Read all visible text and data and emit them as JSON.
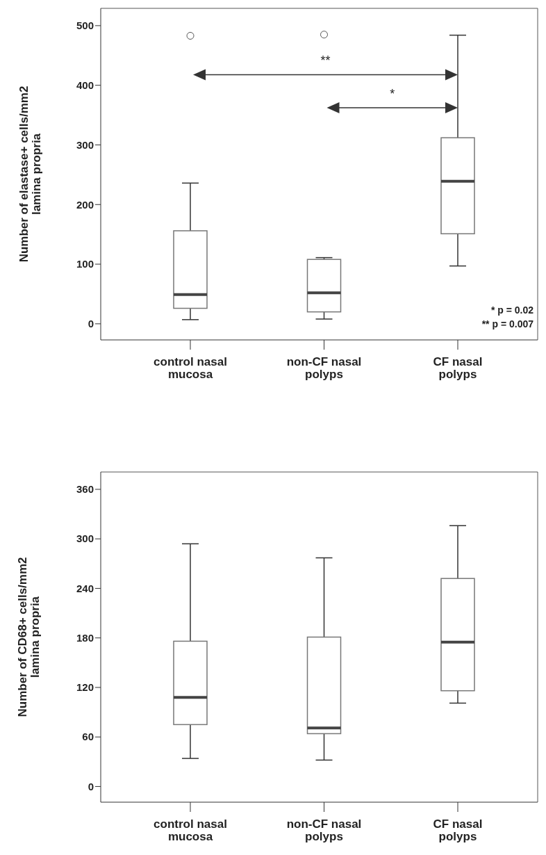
{
  "chart_data": [
    {
      "type": "box",
      "ylabel": "Number of elastase+ cells/mm2\nlamina propria",
      "categories": [
        "control nasal\nmucosa",
        "non-CF nasal\npolyps",
        "CF nasal\npolyps"
      ],
      "ylim": [
        -27,
        529
      ],
      "yticks": [
        0,
        100,
        200,
        300,
        400,
        500
      ],
      "boxes": [
        {
          "low": 7,
          "q1": 26,
          "median": 49,
          "q3": 156,
          "high": 236,
          "outliers": [
            483
          ]
        },
        {
          "low": 8,
          "q1": 20,
          "median": 52,
          "q3": 108,
          "high": 111,
          "outliers": [
            485
          ]
        },
        {
          "low": 97,
          "q1": 151,
          "median": 239,
          "q3": 312,
          "high": 484
        }
      ],
      "annotations": [
        "**",
        "*",
        "*  p = 0.02",
        "**  p = 0.007"
      ],
      "grid": false
    },
    {
      "type": "box",
      "ylabel": "Number of CD68+ cells/mm2\nlamina propria",
      "categories": [
        "control nasal\nmucosa",
        "non-CF nasal\npolyps",
        "CF nasal\npolyps"
      ],
      "ylim": [
        -19,
        381
      ],
      "yticks": [
        0,
        60,
        120,
        180,
        240,
        300,
        360
      ],
      "boxes": [
        {
          "low": 34,
          "q1": 75,
          "median": 108,
          "q3": 176,
          "high": 294
        },
        {
          "low": 32,
          "q1": 64,
          "median": 71,
          "q3": 181,
          "high": 277
        },
        {
          "low": 101,
          "q1": 116,
          "median": 175,
          "q3": 252,
          "high": 316
        }
      ],
      "grid": false
    }
  ]
}
